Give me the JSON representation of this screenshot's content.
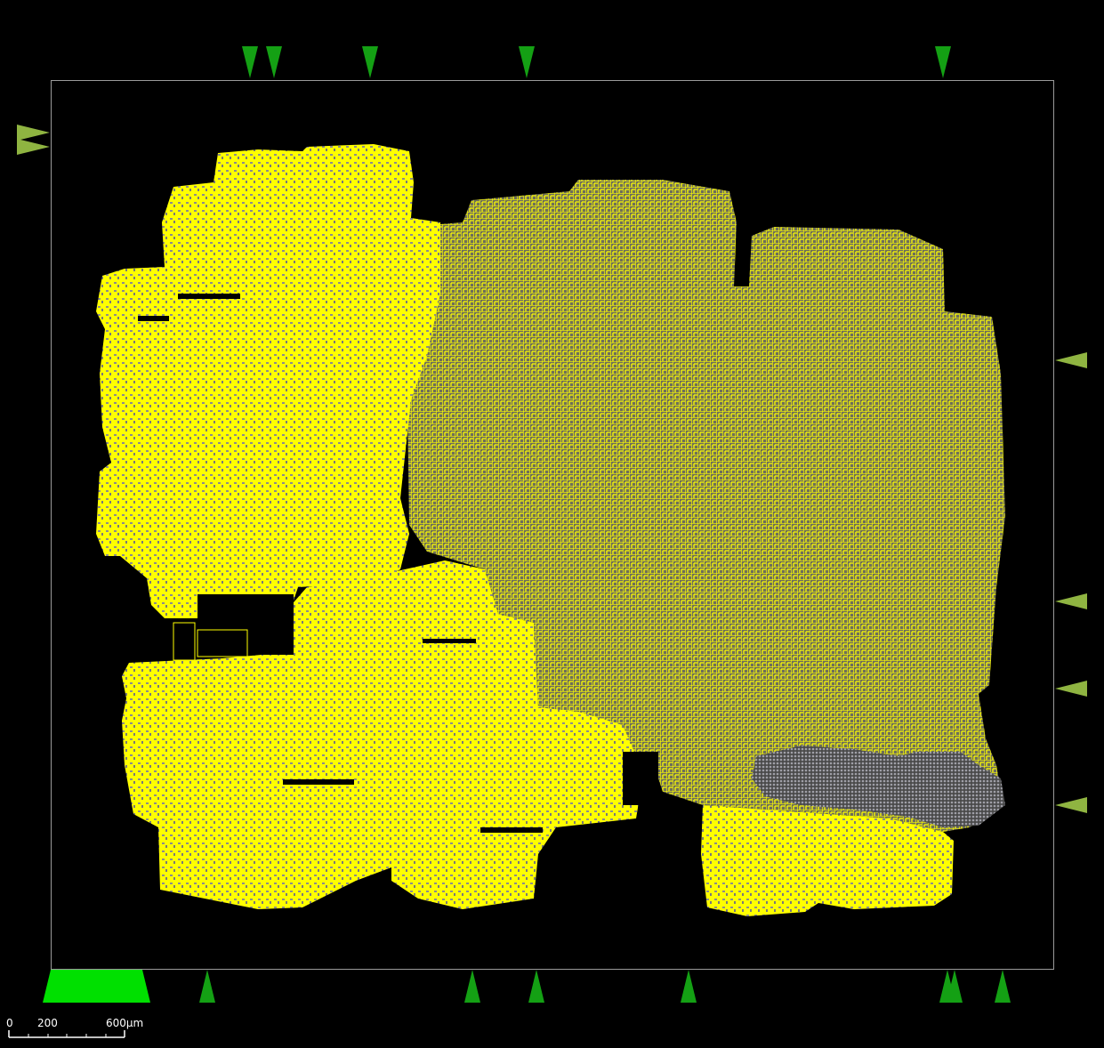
{
  "viewer": {
    "background_color": "#000000",
    "frame_color": "#9a9a9a",
    "cell_outline_color": "#ffff00",
    "cell_fill_color": "#8c8c8c"
  },
  "markers": {
    "top_color": "#14a014",
    "left_color": "#8fb441",
    "right_color": "#8fb441",
    "bottom_color": "#14a014",
    "bottom_active_color": "#00e000"
  },
  "scale_bar": {
    "labels": [
      "0",
      "200",
      "600µm"
    ],
    "color": "#ffffff"
  }
}
